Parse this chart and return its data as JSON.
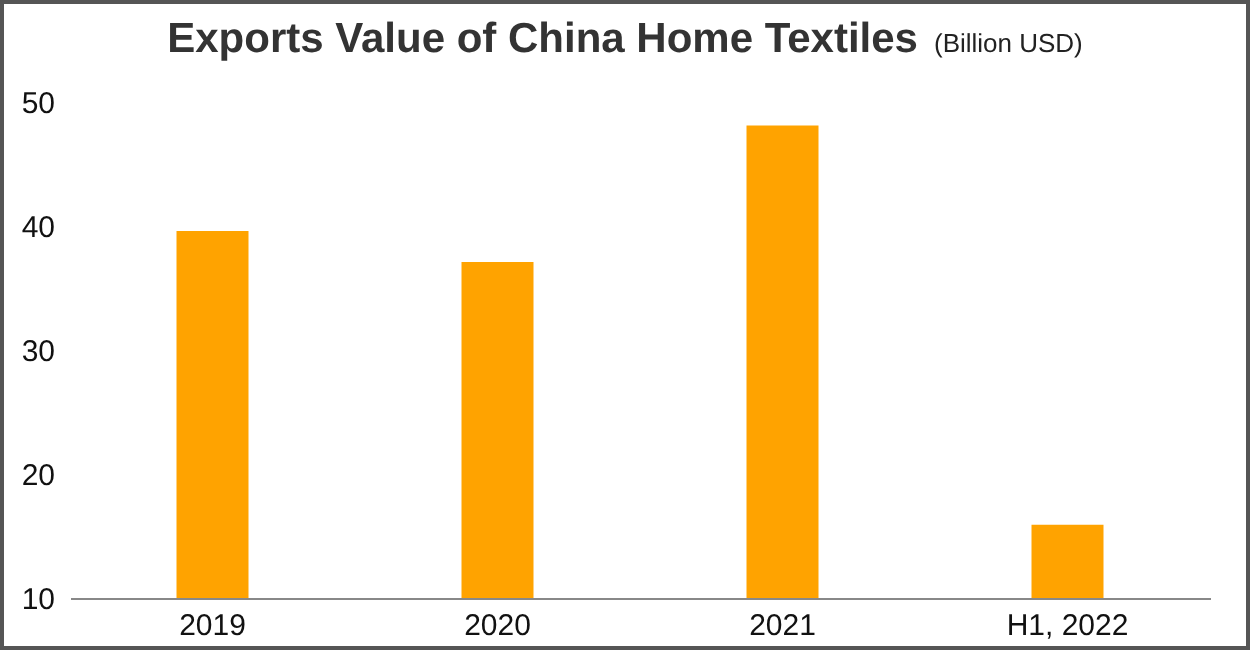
{
  "chart_data": {
    "type": "bar",
    "title": "Exports Value of China Home Textiles",
    "subtitle": "(Billion USD)",
    "categories": [
      "2019",
      "2020",
      "2021",
      "H1, 2022"
    ],
    "values": [
      39.6,
      37.1,
      48.1,
      15.9
    ],
    "color": "#ffa300",
    "ylim": [
      10,
      50
    ],
    "yticks": [
      10,
      20,
      30,
      40,
      50
    ],
    "grid": false
  }
}
